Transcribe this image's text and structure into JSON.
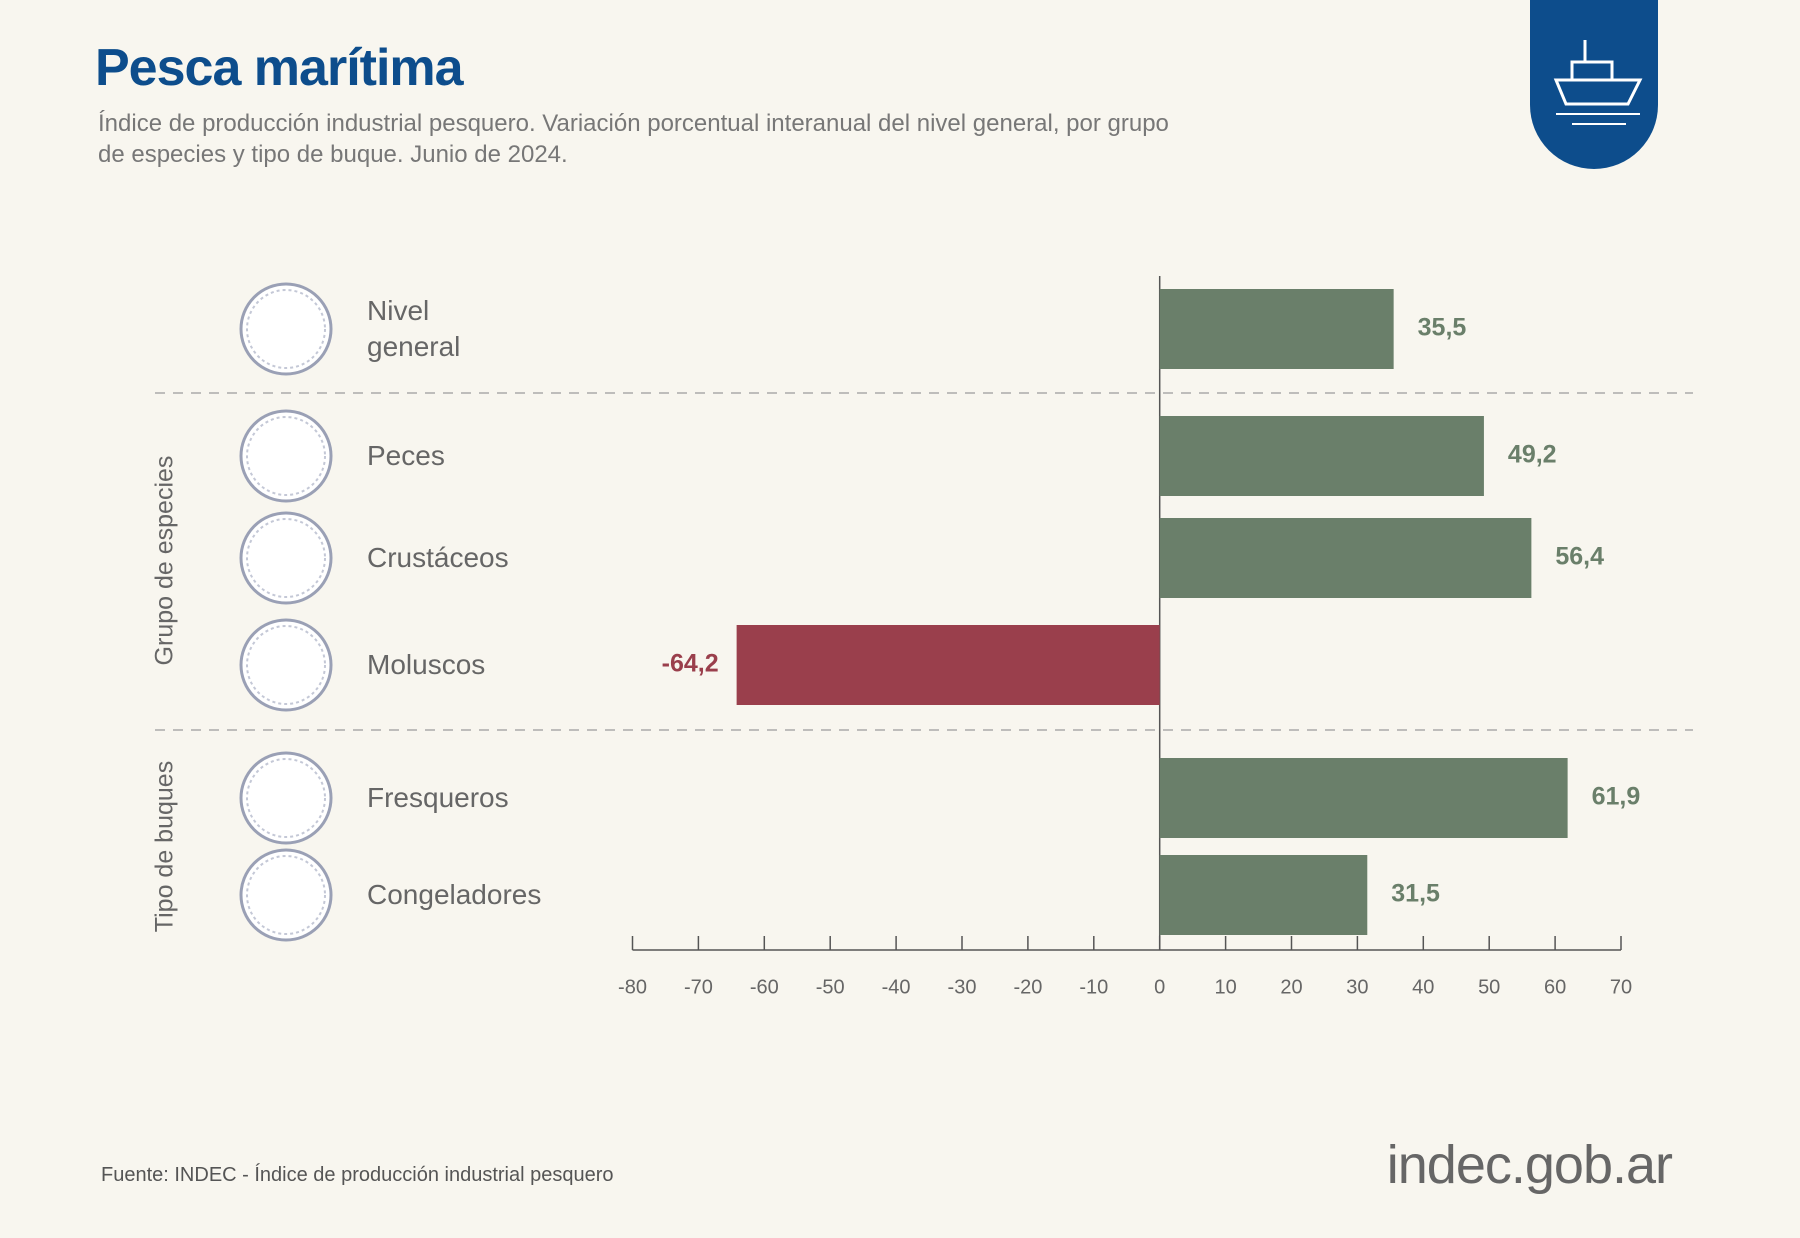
{
  "header": {
    "title": "Pesca marítima",
    "subtitle": "Índice de producción industrial pesquero. Variación porcentual interanual del nivel general, por grupo de especies y tipo de buque. Junio de 2024."
  },
  "chart_data": {
    "type": "bar",
    "orientation": "horizontal",
    "categories": [
      "Nivel general",
      "Peces",
      "Crustáceos",
      "Moluscos",
      "Fresqueros",
      "Congeladores"
    ],
    "groups": [
      {
        "label": "Grupo de especies",
        "categories": [
          1,
          3
        ]
      },
      {
        "label": "Tipo de buques",
        "categories": [
          4,
          5
        ]
      }
    ],
    "values": [
      35.5,
      49.2,
      56.4,
      -64.2,
      61.9,
      31.5
    ],
    "value_labels": [
      "35,5",
      "49,2",
      "56,4",
      "-64,2",
      "61,9",
      "31,5"
    ],
    "positive_color": "#6a7f6a",
    "negative_color": "#9a3f4c",
    "xlim": [
      -80,
      70
    ],
    "xticks": [
      -80,
      -70,
      -60,
      -50,
      -40,
      -30,
      -20,
      -10,
      0,
      10,
      20,
      30,
      40,
      50,
      60,
      70
    ]
  },
  "footer": {
    "source": "Fuente: INDEC - Índice de producción industrial pesquero",
    "logo": "indec.gob.ar"
  }
}
